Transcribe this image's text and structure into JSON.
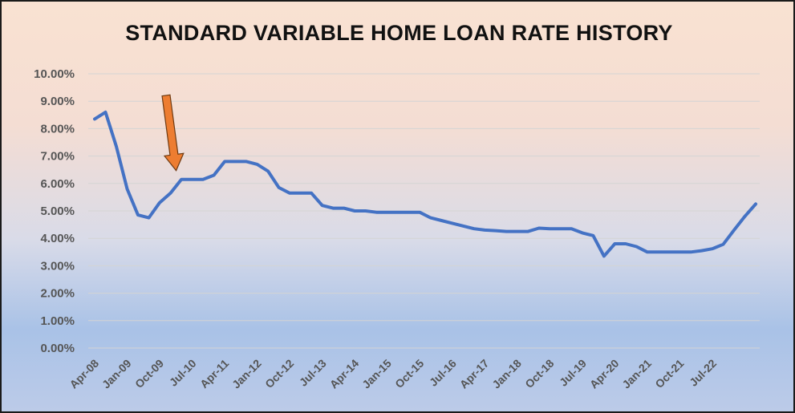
{
  "chart_data": {
    "type": "line",
    "title": "STANDARD VARIABLE HOME LOAN RATE HISTORY",
    "xlabel": "",
    "ylabel": "",
    "ylim": [
      0,
      10
    ],
    "y_ticks": [
      "0.00%",
      "1.00%",
      "2.00%",
      "3.00%",
      "4.00%",
      "5.00%",
      "6.00%",
      "7.00%",
      "8.00%",
      "9.00%",
      "10.00%"
    ],
    "x_tick_labels": [
      "Apr-08",
      "Jan-09",
      "Oct-09",
      "Jul-10",
      "Apr-11",
      "Jan-12",
      "Oct-12",
      "Jul-13",
      "Apr-14",
      "Jan-15",
      "Oct-15",
      "Jul-16",
      "Apr-17",
      "Jan-18",
      "Oct-18",
      "Jul-19",
      "Apr-20",
      "Jan-21",
      "Oct-21",
      "Jul-22"
    ],
    "grid": true,
    "line_color": "#4472c4",
    "annotation_arrow_color": "#ed7d31",
    "annotation_arrow_points_to": "Jul-10",
    "series": [
      {
        "x": [
          "Apr-08",
          "Jul-08",
          "Oct-08",
          "Jan-09",
          "Apr-09",
          "Jul-09",
          "Oct-09",
          "Jan-10",
          "Apr-10",
          "Jul-10",
          "Oct-10",
          "Jan-11",
          "Apr-11",
          "Jul-11",
          "Oct-11",
          "Jan-12",
          "Apr-12",
          "Jul-12",
          "Oct-12",
          "Jan-13",
          "Apr-13",
          "Jul-13",
          "Oct-13",
          "Jan-14",
          "Apr-14",
          "Jul-14",
          "Oct-14",
          "Jan-15",
          "Apr-15",
          "Jul-15",
          "Oct-15",
          "Jan-16",
          "Apr-16",
          "Jul-16",
          "Oct-16",
          "Jan-17",
          "Apr-17",
          "Jul-17",
          "Oct-17",
          "Jan-18",
          "Apr-18",
          "Jul-18",
          "Oct-18",
          "Jan-19",
          "Apr-19",
          "Jul-19",
          "Oct-19",
          "Jan-20",
          "Apr-20",
          "Jul-20",
          "Oct-20",
          "Jan-21",
          "Apr-21",
          "Jul-21",
          "Oct-21",
          "Jan-22",
          "Apr-22",
          "Jul-22",
          "Oct-22",
          "Jan-23"
        ],
        "values": [
          8.35,
          8.6,
          7.35,
          5.8,
          4.85,
          4.75,
          5.3,
          5.65,
          6.15,
          6.15,
          6.15,
          6.3,
          6.8,
          6.8,
          6.8,
          6.7,
          6.45,
          5.85,
          5.65,
          5.65,
          5.65,
          5.2,
          5.1,
          5.1,
          5.0,
          5.0,
          4.95,
          4.95,
          4.95,
          4.95,
          4.95,
          4.75,
          4.65,
          4.55,
          4.45,
          4.35,
          4.3,
          4.28,
          4.25,
          4.25,
          4.25,
          4.37,
          4.35,
          4.35,
          4.35,
          4.2,
          4.1,
          3.35,
          3.8,
          3.8,
          3.7,
          3.5,
          3.5,
          3.5,
          3.5,
          3.5,
          3.55,
          3.62,
          3.78,
          4.3
        ]
      }
    ],
    "series_tail": [
      4.8,
      5.25
    ]
  }
}
